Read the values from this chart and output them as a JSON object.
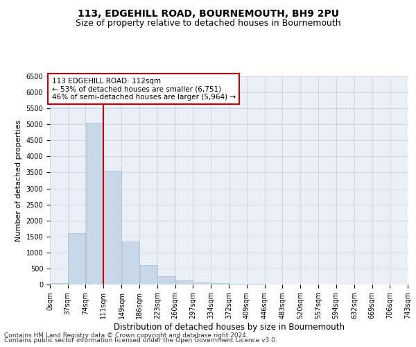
{
  "title": "113, EDGEHILL ROAD, BOURNEMOUTH, BH9 2PU",
  "subtitle": "Size of property relative to detached houses in Bournemouth",
  "xlabel": "Distribution of detached houses by size in Bournemouth",
  "ylabel": "Number of detached properties",
  "bin_edges": [
    0,
    37,
    74,
    111,
    149,
    186,
    223,
    260,
    297,
    334,
    372,
    409,
    446,
    483,
    520,
    557,
    594,
    632,
    669,
    706,
    743
  ],
  "bar_heights": [
    50,
    1600,
    5050,
    3550,
    1350,
    600,
    250,
    120,
    75,
    50,
    30,
    15,
    8,
    3,
    1,
    0,
    0,
    0,
    0,
    0
  ],
  "bar_color": "#c8d8e8",
  "bar_edgecolor": "#a8bcd0",
  "vline_x": 111,
  "vline_color": "#cc0000",
  "annotation_text": "113 EDGEHILL ROAD: 112sqm\n← 53% of detached houses are smaller (6,751)\n46% of semi-detached houses are larger (5,964) →",
  "annotation_box_color": "white",
  "annotation_box_edgecolor": "#cc0000",
  "ylim": [
    0,
    6500
  ],
  "yticks": [
    0,
    500,
    1000,
    1500,
    2000,
    2500,
    3000,
    3500,
    4000,
    4500,
    5000,
    5500,
    6000,
    6500
  ],
  "grid_color": "#c8d4e0",
  "bg_color": "#eaf0f6",
  "footer_line1": "Contains HM Land Registry data © Crown copyright and database right 2024.",
  "footer_line2": "Contains public sector information licensed under the Open Government Licence v3.0.",
  "title_fontsize": 10,
  "subtitle_fontsize": 9,
  "xlabel_fontsize": 8.5,
  "ylabel_fontsize": 8,
  "tick_fontsize": 7,
  "annotation_fontsize": 7.5,
  "footer_fontsize": 6.5
}
